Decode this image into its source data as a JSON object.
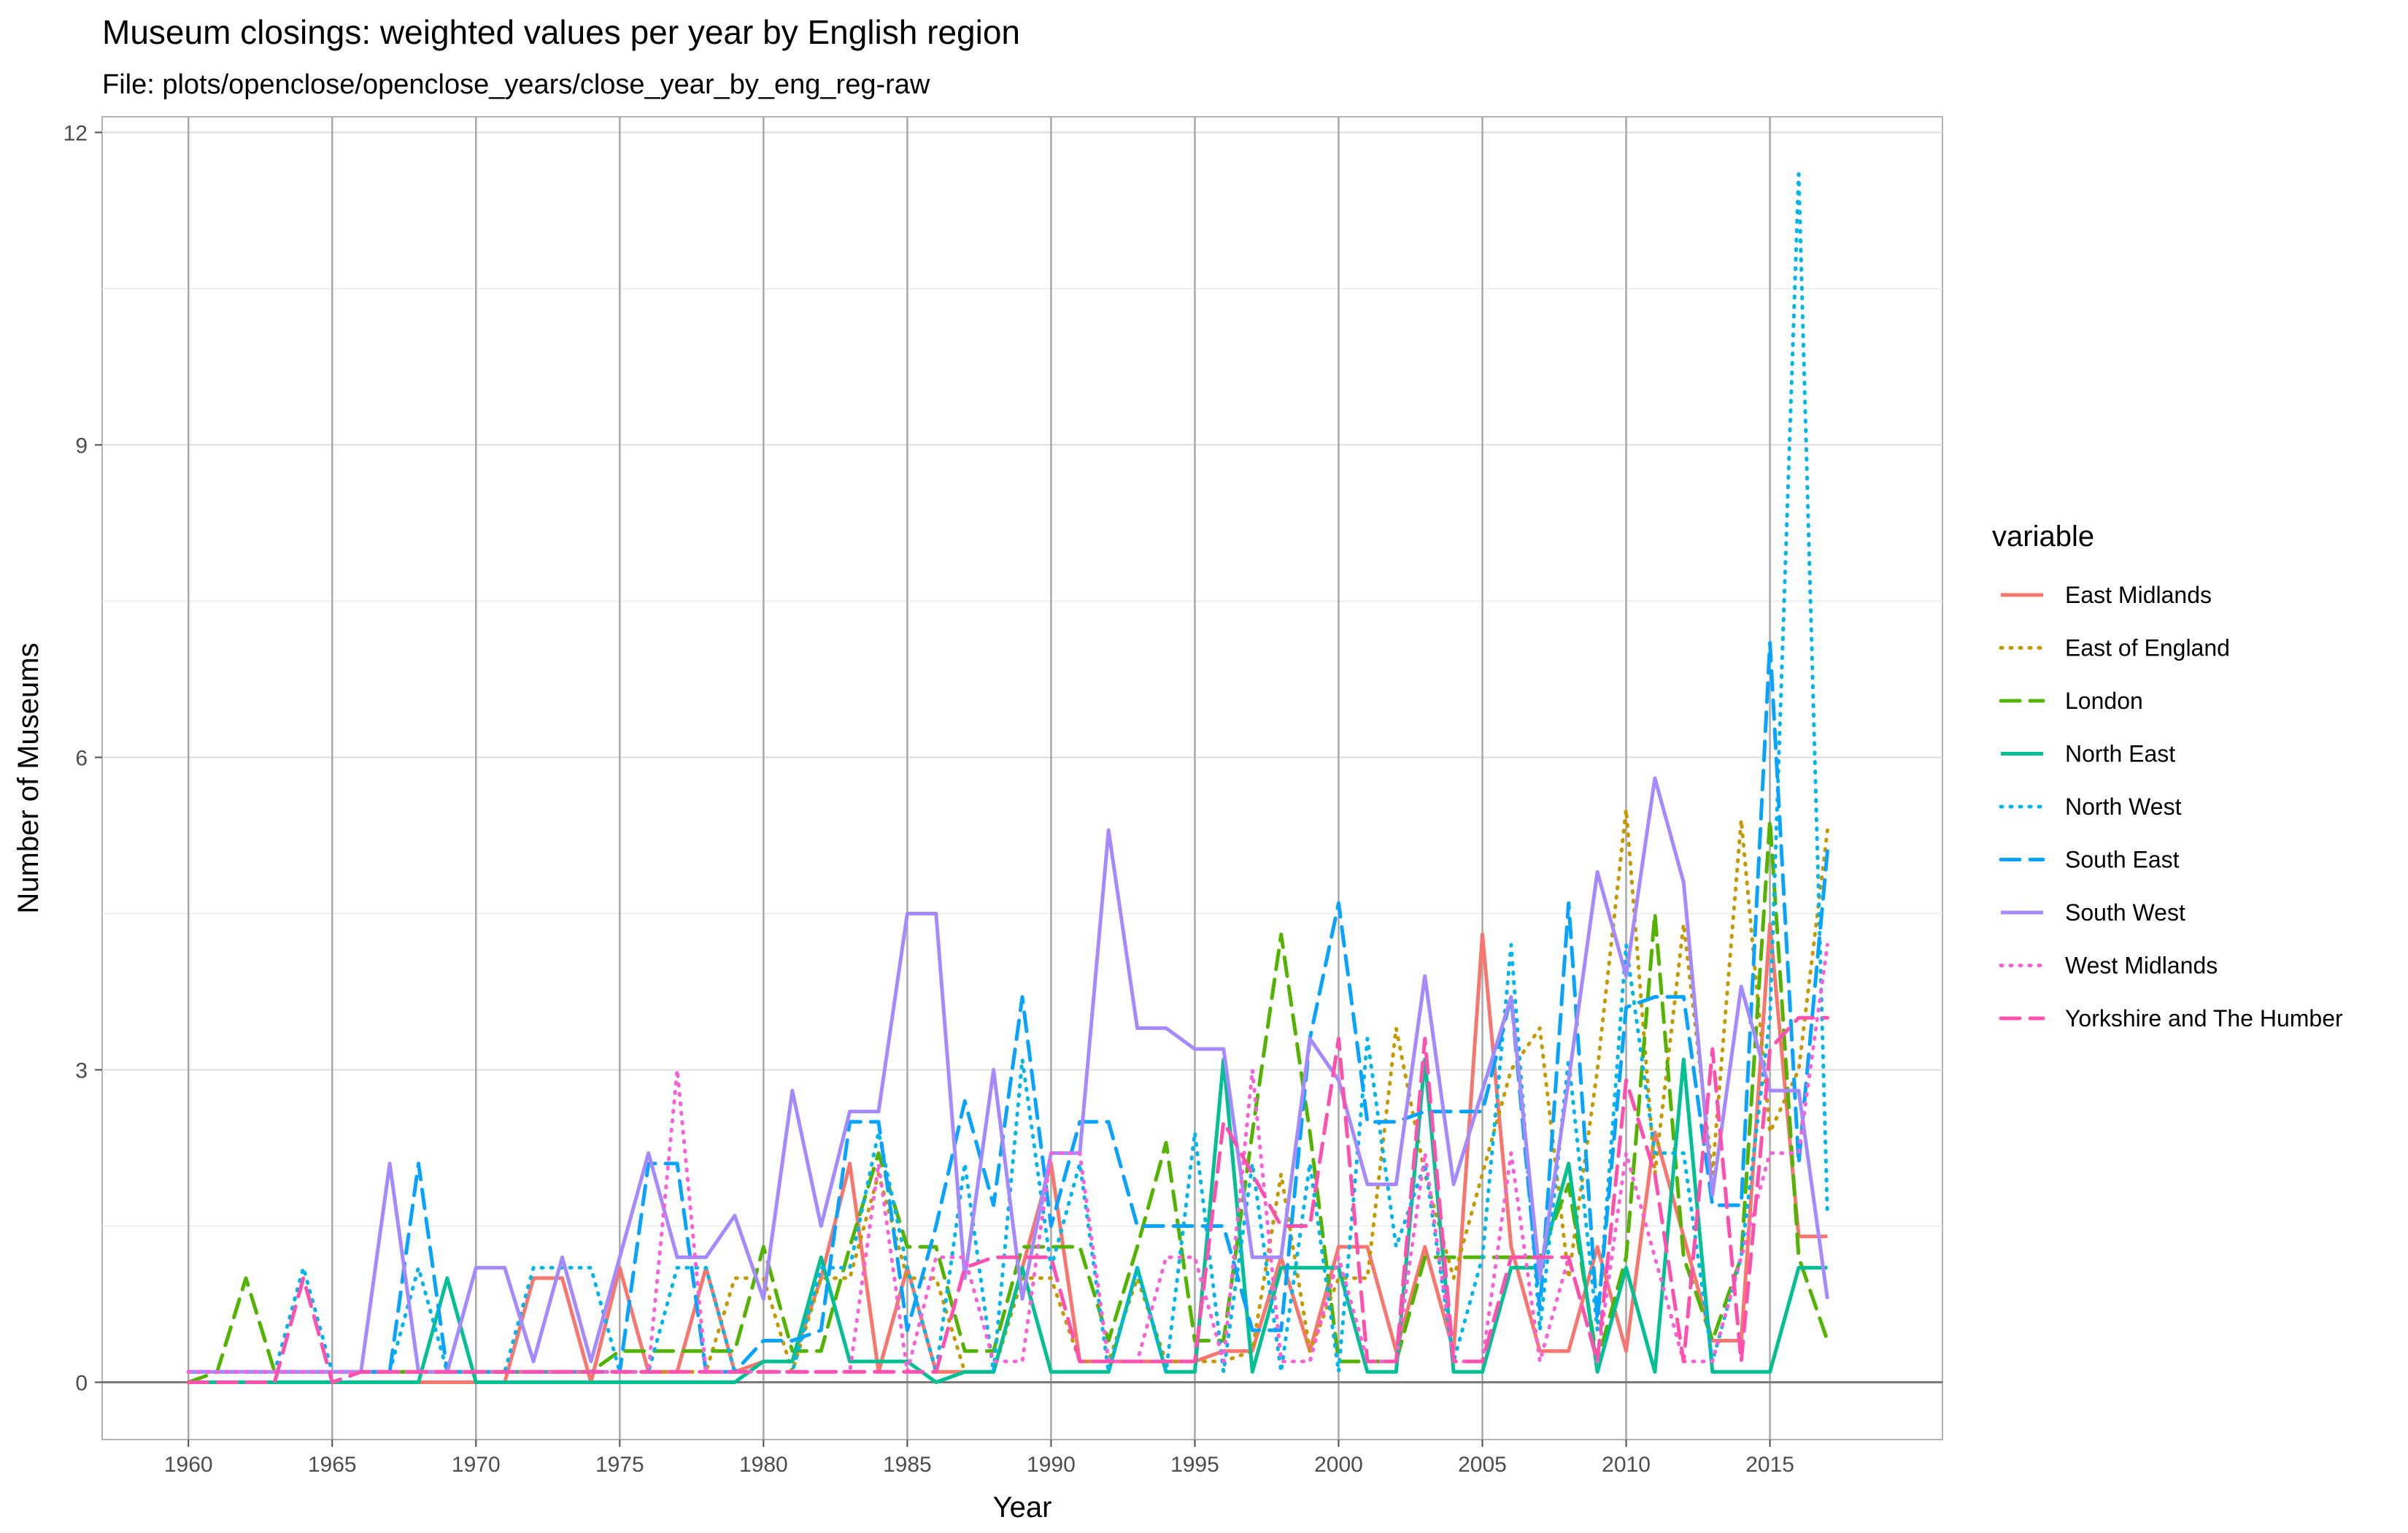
{
  "chart_data": {
    "type": "line",
    "title": "Museum closings: weighted values per year by English region",
    "subtitle": "File: plots/openclose/openclose_years/close_year_by_eng_reg-raw",
    "xlabel": "Year",
    "ylabel": "Number of Museums",
    "legend_title": "variable",
    "legend_position": "right",
    "grid": true,
    "xlim": [
      1957,
      2021
    ],
    "ylim": [
      -0.55,
      12.15
    ],
    "x": [
      1960,
      1961,
      1962,
      1963,
      1964,
      1965,
      1966,
      1967,
      1968,
      1969,
      1970,
      1971,
      1972,
      1973,
      1974,
      1975,
      1976,
      1977,
      1978,
      1979,
      1980,
      1981,
      1982,
      1983,
      1984,
      1985,
      1986,
      1987,
      1988,
      1989,
      1990,
      1991,
      1992,
      1993,
      1994,
      1995,
      1996,
      1997,
      1998,
      1999,
      2000,
      2001,
      2002,
      2003,
      2004,
      2005,
      2006,
      2007,
      2008,
      2009,
      2010,
      2011,
      2012,
      2013,
      2014,
      2015,
      2016,
      2017
    ],
    "x_ticks": [
      1960,
      1965,
      1970,
      1975,
      1980,
      1985,
      1990,
      1995,
      2000,
      2005,
      2010,
      2015
    ],
    "x_tick_labels": [
      "1960",
      "1965",
      "1970",
      "1975",
      "1980",
      "1985",
      "1990",
      "1995",
      "2000",
      "2005",
      "2010",
      "2015"
    ],
    "y_ticks": [
      0,
      3,
      6,
      9,
      12
    ],
    "y_tick_labels": [
      "0",
      "3",
      "6",
      "9",
      "12"
    ],
    "series": [
      {
        "name": "East Midlands",
        "color": "#F8766D",
        "dash": "solid",
        "values": [
          0,
          0,
          0,
          0,
          0,
          0,
          0,
          0,
          0,
          0,
          0,
          0,
          1,
          1,
          0,
          1.1,
          0.1,
          0.1,
          1.1,
          0.1,
          0.2,
          0.2,
          1,
          2.1,
          0.1,
          1.1,
          0.1,
          0.1,
          0.1,
          1.1,
          2.1,
          0.2,
          0.2,
          0.2,
          0.2,
          0.2,
          0.3,
          0.3,
          1.2,
          0.3,
          1.3,
          1.3,
          0.3,
          1.3,
          0.3,
          4.3,
          1.3,
          0.3,
          0.3,
          1.3,
          0.3,
          2.4,
          1.4,
          0.4,
          0.4,
          4.4,
          1.4,
          1.4
        ]
      },
      {
        "name": "East of England",
        "color": "#C49A00",
        "dash": "dot",
        "values": [
          0.1,
          0.1,
          0.1,
          0.1,
          0.1,
          0.1,
          0.1,
          0.1,
          0.1,
          0.1,
          0.1,
          0.1,
          0.1,
          0.1,
          0.1,
          0.1,
          0.1,
          0.1,
          0.1,
          1,
          1,
          0.1,
          1,
          1,
          2,
          1,
          1,
          0.1,
          0.1,
          1,
          1,
          0.2,
          0.2,
          1,
          0.2,
          0.2,
          0.2,
          0.3,
          2,
          0.3,
          1,
          1,
          3.4,
          2,
          1,
          2,
          3,
          3.4,
          1,
          3,
          5.5,
          2,
          4.4,
          2,
          5.4,
          2.4,
          3,
          5.3
        ]
      },
      {
        "name": "London",
        "color": "#53B400",
        "dash": "longdash",
        "values": [
          0,
          0.1,
          1,
          0.1,
          0.1,
          0.1,
          0.1,
          0.1,
          0.1,
          0.1,
          0.1,
          0.1,
          0.1,
          0.1,
          0.1,
          0.3,
          0.3,
          0.3,
          0.3,
          0.3,
          1.3,
          0.3,
          0.3,
          1.3,
          2.2,
          1.3,
          1.3,
          0.3,
          0.3,
          1.3,
          1.3,
          1.3,
          0.4,
          1.3,
          2.3,
          0.4,
          0.4,
          2.4,
          4.3,
          2.4,
          0.2,
          0.2,
          0.2,
          1.2,
          1.2,
          1.2,
          1.2,
          1.2,
          1.9,
          0.2,
          1.2,
          4.5,
          1.2,
          0.4,
          1.2,
          5.4,
          1.2,
          0.4
        ]
      },
      {
        "name": "North East",
        "color": "#00C094",
        "dash": "solid",
        "values": [
          0,
          0,
          0,
          0,
          0,
          0,
          0,
          0,
          0,
          1,
          0,
          0,
          0,
          0,
          0,
          0,
          0,
          0,
          0,
          0,
          0.2,
          0.2,
          1.2,
          0.2,
          0.2,
          0.2,
          0,
          0.1,
          0.1,
          1.1,
          0.1,
          0.1,
          0.1,
          1.1,
          0.1,
          0.1,
          3.1,
          0.1,
          1.1,
          1.1,
          1.1,
          0.1,
          0.1,
          3.1,
          0.1,
          0.1,
          1.1,
          1.1,
          2.1,
          0.1,
          1.1,
          0.1,
          3.1,
          0.1,
          0.1,
          0.1,
          1.1,
          1.1
        ]
      },
      {
        "name": "North West",
        "color": "#00B6EB",
        "dash": "dot",
        "values": [
          0.1,
          0.1,
          0.1,
          0.1,
          1.1,
          0.1,
          0.1,
          0.1,
          1.1,
          0.1,
          0.1,
          0.1,
          1.1,
          1.1,
          1.1,
          0.1,
          0.1,
          1.1,
          1.1,
          0.1,
          0.1,
          0.1,
          1.1,
          1.1,
          2.4,
          1.1,
          0.1,
          2.1,
          0.1,
          3.1,
          1.1,
          2.1,
          0.1,
          1.1,
          0.1,
          2.4,
          0.1,
          2.1,
          0.1,
          2.1,
          0.1,
          3.3,
          1.3,
          2.1,
          0.2,
          1.2,
          4.2,
          0.5,
          3.1,
          0.5,
          4.2,
          2.2,
          2.2,
          0.2,
          1.2,
          3.5,
          11.6,
          1.6
        ]
      },
      {
        "name": "South East",
        "color": "#06A4FF",
        "dash": "longdash",
        "values": [
          0.1,
          0.1,
          0.1,
          0.1,
          0.1,
          0.1,
          0.1,
          0.1,
          2.1,
          0.1,
          0.1,
          0.1,
          0.1,
          0.1,
          0.1,
          0.1,
          2.1,
          2.1,
          0.1,
          0.1,
          0.4,
          0.4,
          0.5,
          2.5,
          2.5,
          0.5,
          1.5,
          2.7,
          1.7,
          3.7,
          1.5,
          2.5,
          2.5,
          1.5,
          1.5,
          1.5,
          1.5,
          0.5,
          0.5,
          3.3,
          4.6,
          2.5,
          2.5,
          2.6,
          2.6,
          2.6,
          3.7,
          0.7,
          4.6,
          0.6,
          3.6,
          3.7,
          3.7,
          1.7,
          1.7,
          7.1,
          2.1,
          5.1
        ]
      },
      {
        "name": "South West",
        "color": "#A58AFF",
        "dash": "solid",
        "values": [
          0.1,
          0.1,
          0.1,
          0.1,
          0.1,
          0.1,
          0.1,
          2.1,
          0.1,
          0.1,
          1.1,
          1.1,
          0.2,
          1.2,
          0.2,
          1.2,
          2.2,
          1.2,
          1.2,
          1.6,
          0.8,
          2.8,
          1.5,
          2.6,
          2.6,
          4.5,
          4.5,
          1.0,
          3.0,
          0.8,
          2.2,
          2.2,
          5.3,
          3.4,
          3.4,
          3.2,
          3.2,
          1.2,
          1.2,
          3.3,
          2.9,
          1.9,
          1.9,
          3.9,
          1.9,
          2.8,
          3.7,
          1.0,
          2.9,
          4.9,
          3.9,
          5.8,
          4.8,
          1.8,
          3.8,
          2.8,
          2.8,
          0.8
        ]
      },
      {
        "name": "West Midlands",
        "color": "#FB61D7",
        "dash": "dot",
        "values": [
          0.1,
          0.1,
          0.1,
          0.1,
          0.1,
          0.1,
          0.1,
          0.1,
          0.1,
          0.1,
          0.1,
          0.1,
          0.1,
          0.1,
          0.1,
          0.1,
          0.1,
          3.0,
          0.1,
          0.1,
          0.1,
          0.1,
          0.1,
          0.1,
          2.1,
          0.1,
          1.2,
          1.2,
          0.2,
          0.2,
          2.2,
          2.2,
          0.2,
          0.2,
          1.2,
          1.2,
          0.2,
          3.0,
          0.2,
          0.2,
          1.2,
          0.2,
          0.2,
          2.2,
          0.2,
          0.2,
          2.2,
          0.2,
          1.2,
          0.2,
          2.2,
          1.2,
          0.2,
          0.2,
          1.2,
          2.2,
          2.2,
          4.2
        ]
      },
      {
        "name": "Yorkshire and The Humber",
        "color": "#FF4FAF",
        "dash": "longdash",
        "values": [
          0,
          0,
          0,
          0,
          1,
          0,
          0.1,
          0.1,
          0.1,
          0.1,
          0.1,
          0.1,
          0.1,
          0.1,
          0.1,
          0.1,
          0.1,
          0.1,
          0.1,
          0.1,
          0.1,
          0.1,
          0.1,
          0.1,
          0.1,
          0.1,
          0.1,
          1.1,
          1.2,
          1.2,
          1.2,
          0.2,
          0.2,
          0.2,
          0.2,
          0.2,
          2.5,
          2.0,
          1.5,
          1.5,
          3.3,
          0.2,
          0.2,
          3.3,
          0.2,
          0.2,
          1.2,
          1.2,
          1.2,
          0.2,
          2.9,
          2.0,
          0.2,
          3.2,
          0.2,
          3.2,
          3.5,
          3.5
        ]
      }
    ]
  }
}
